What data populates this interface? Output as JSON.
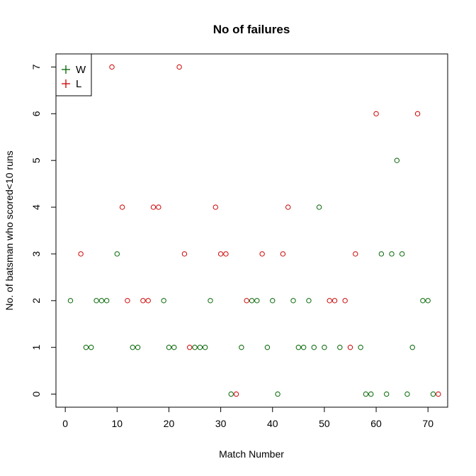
{
  "chart_data": {
    "type": "scatter",
    "title": "No of failures",
    "xlabel": "Match Number",
    "ylabel": "No. of batsman who scored<10 runs",
    "xlim": [
      -1.8,
      73.8
    ],
    "ylim": [
      -0.28,
      7.28
    ],
    "x_ticks": [
      0,
      10,
      20,
      30,
      40,
      50,
      60,
      70
    ],
    "y_ticks": [
      0,
      1,
      2,
      3,
      4,
      5,
      6,
      7
    ],
    "grid": false,
    "legend_position": "top-left",
    "series": [
      {
        "name": "W",
        "color": "#006400",
        "marker": "open-circle",
        "x": [
          1,
          4,
          5,
          6,
          7,
          8,
          10,
          13,
          14,
          19,
          20,
          21,
          25,
          26,
          27,
          28,
          32,
          34,
          36,
          37,
          39,
          40,
          41,
          44,
          45,
          46,
          47,
          48,
          49,
          50,
          53,
          57,
          58,
          59,
          61,
          62,
          63,
          64,
          65,
          66,
          67,
          69,
          70,
          71
        ],
        "y": [
          2,
          1,
          1,
          2,
          2,
          2,
          3,
          1,
          1,
          2,
          1,
          1,
          1,
          1,
          1,
          2,
          0,
          1,
          2,
          2,
          1,
          2,
          0,
          2,
          1,
          1,
          2,
          1,
          4,
          1,
          1,
          1,
          0,
          0,
          3,
          0,
          3,
          5,
          3,
          0,
          1,
          2,
          2,
          0
        ]
      },
      {
        "name": "L",
        "color": "#CC0000",
        "marker": "open-circle",
        "x": [
          3,
          9,
          11,
          12,
          15,
          16,
          17,
          18,
          22,
          23,
          24,
          29,
          30,
          31,
          33,
          35,
          38,
          42,
          43,
          51,
          52,
          54,
          55,
          56,
          60,
          68,
          72
        ],
        "y": [
          3,
          7,
          4,
          2,
          2,
          2,
          4,
          4,
          7,
          3,
          1,
          4,
          3,
          3,
          0,
          2,
          3,
          3,
          4,
          2,
          2,
          2,
          1,
          3,
          6,
          6,
          0
        ]
      }
    ]
  }
}
